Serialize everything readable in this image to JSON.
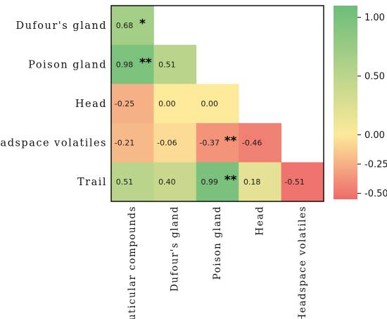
{
  "chart_data": {
    "type": "heatmap",
    "rows": [
      "Dufour's gland",
      "Poison gland",
      "Head",
      "Headspace volatiles",
      "Trail"
    ],
    "columns": [
      "Cuticular compounds",
      "Dufour's gland",
      "Poison gland",
      "Head",
      "Headspace volatiles"
    ],
    "cells": [
      [
        {
          "value": "0.68",
          "stars": "*"
        },
        null,
        null,
        null,
        null
      ],
      [
        {
          "value": "0.98",
          "stars": "**"
        },
        {
          "value": "0.51",
          "stars": ""
        },
        null,
        null,
        null
      ],
      [
        {
          "value": "-0.25",
          "stars": ""
        },
        {
          "value": "0.00",
          "stars": ""
        },
        {
          "value": "0.00",
          "stars": ""
        },
        null,
        null
      ],
      [
        {
          "value": "-0.21",
          "stars": ""
        },
        {
          "value": "-0.06",
          "stars": ""
        },
        {
          "value": "-0.37",
          "stars": "**"
        },
        {
          "value": "-0.46",
          "stars": ""
        },
        null
      ],
      [
        {
          "value": "0.51",
          "stars": ""
        },
        {
          "value": "0.40",
          "stars": ""
        },
        {
          "value": "0.99",
          "stars": "**"
        },
        {
          "value": "0.18",
          "stars": ""
        },
        {
          "value": "-0.51",
          "stars": ""
        }
      ]
    ],
    "colorbar": {
      "min": -0.55,
      "max": 1.1,
      "ticks": [
        "1.00",
        "0.50",
        "0.00",
        "-0.25",
        "-0.50"
      ],
      "colors": {
        "low": "#ee6b6b",
        "mid": "#fde99a",
        "high": "#6cbd7a"
      }
    },
    "grid": false
  }
}
